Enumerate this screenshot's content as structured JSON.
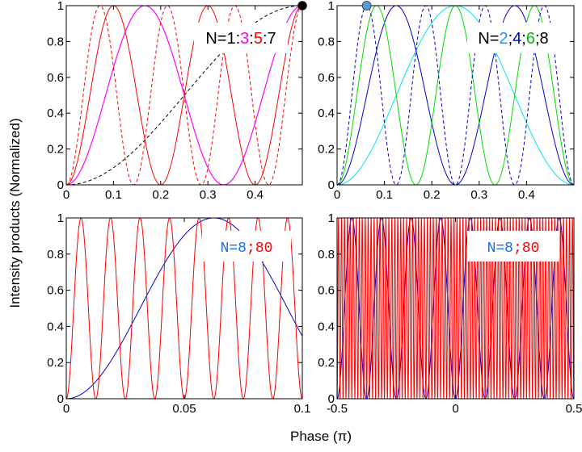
{
  "figure": {
    "xlabel": "Phase (π)",
    "ylabel": "Intensity products (Normalized)"
  },
  "colors": {
    "red": "#ff0000",
    "magenta": "#ff00ff",
    "blue": "#0000cc",
    "green": "#00dd00",
    "cyan": "#00e5e5",
    "light_blue": "#1e90ff",
    "dark_text": "#000000"
  },
  "chart_data": [
    {
      "type": "line",
      "panel": "top-left",
      "xlim": [
        0,
        0.5
      ],
      "ylim": [
        0,
        1
      ],
      "xticks": [
        "0",
        "0.1",
        "0.2",
        "0.3",
        "0.4"
      ],
      "xtick_values": [
        0,
        0.1,
        0.2,
        0.3,
        0.4
      ],
      "yticks": [
        "0",
        "0.2",
        "0.4",
        "0.6",
        "0.8",
        "1"
      ],
      "ytick_values": [
        0,
        0.2,
        0.4,
        0.6,
        0.8,
        1
      ],
      "function": "sin^2(N*pi*x)",
      "series": [
        {
          "N": 1,
          "color": "#000000",
          "dash": "4,3",
          "width": 1
        },
        {
          "N": 3,
          "color": "#ff00ff",
          "dash": "",
          "width": 1.2
        },
        {
          "N": 5,
          "color": "#ff0000",
          "dash": "",
          "width": 1
        },
        {
          "N": 7,
          "color": "#ff0000",
          "dash": "4,3",
          "width": 1
        }
      ],
      "legend": [
        {
          "text": "N=1",
          "color": "#000000"
        },
        {
          "text": ":",
          "color": "#000000"
        },
        {
          "text": "3",
          "color": "#ff00ff"
        },
        {
          "text": ":",
          "color": "#000000"
        },
        {
          "text": "5",
          "color": "#ff0000"
        },
        {
          "text": ":7",
          "color": "#000000"
        }
      ],
      "legend_position": "top-right",
      "marker": {
        "x": 0.5,
        "y": 1,
        "color": "#000000"
      }
    },
    {
      "type": "line",
      "panel": "top-right",
      "xlim": [
        0,
        0.5
      ],
      "ylim": [
        0,
        1
      ],
      "xticks": [
        "0",
        "0.1",
        "0.2",
        "0.3",
        "0.4"
      ],
      "xtick_values": [
        0,
        0.1,
        0.2,
        0.3,
        0.4
      ],
      "yticks": [
        "0",
        "0.2",
        "0.4",
        "0.6",
        "0.8",
        "1"
      ],
      "ytick_values": [
        0,
        0.2,
        0.4,
        0.6,
        0.8,
        1
      ],
      "function": "sin^2(N*pi*x)",
      "series": [
        {
          "N": 2,
          "color": "#00e5e5",
          "dash": "",
          "width": 1
        },
        {
          "N": 4,
          "color": "#0000cc",
          "dash": "",
          "width": 1
        },
        {
          "N": 6,
          "color": "#00dd00",
          "dash": "",
          "width": 1
        },
        {
          "N": 8,
          "color": "#0000cc",
          "dash": "4,3",
          "width": 1
        }
      ],
      "legend": [
        {
          "text": "N=",
          "color": "#000000"
        },
        {
          "text": "2",
          "color": "#1e90ff"
        },
        {
          "text": ";",
          "color": "#000000"
        },
        {
          "text": "4",
          "color": "#0000cc"
        },
        {
          "text": ";",
          "color": "#000000"
        },
        {
          "text": "6",
          "color": "#00bb00"
        },
        {
          "text": ";8",
          "color": "#000000"
        }
      ],
      "legend_position": "top-right",
      "marker": {
        "x": 0.0625,
        "y": 1,
        "color": "#5b9bd5"
      }
    },
    {
      "type": "line",
      "panel": "bottom-left",
      "xlim": [
        0,
        0.1
      ],
      "ylim": [
        0,
        1
      ],
      "xticks": [
        "0",
        "0.05",
        "0.1"
      ],
      "xtick_values": [
        0,
        0.05,
        0.1
      ],
      "yticks": [
        "0",
        "0.2",
        "0.4",
        "0.6",
        "0.8",
        "1"
      ],
      "ytick_values": [
        0,
        0.2,
        0.4,
        0.6,
        0.8,
        1
      ],
      "function": "sin^2(N*pi*x)",
      "series": [
        {
          "N": 8,
          "color": "#0000cc",
          "dash": "",
          "width": 1
        },
        {
          "N": 80,
          "color": "#ff0000",
          "dash": "",
          "width": 1
        }
      ],
      "legend": [
        {
          "text": "N=8",
          "color": "#1e6fe0"
        },
        {
          "text": ";",
          "color": "#ff0000"
        },
        {
          "text": "80",
          "color": "#ff0000"
        }
      ],
      "legend_position": "top-right",
      "legend_font": "mono"
    },
    {
      "type": "line",
      "panel": "bottom-right",
      "xlim": [
        -0.5,
        0.5
      ],
      "ylim": [
        0,
        1
      ],
      "xticks": [
        "-0.5",
        "0",
        "0.5"
      ],
      "xtick_values": [
        -0.5,
        0,
        0.5
      ],
      "yticks": [
        "0",
        "0.2",
        "0.4",
        "0.6",
        "0.8",
        "1"
      ],
      "ytick_values": [
        0,
        0.2,
        0.4,
        0.6,
        0.8,
        1
      ],
      "function": "sin^2(N*pi*x)",
      "series": [
        {
          "N": 8,
          "color": "#0000cc",
          "dash": "",
          "width": 1
        },
        {
          "N": 80,
          "color": "#ff0000",
          "dash": "",
          "width": 1
        }
      ],
      "legend": [
        {
          "text": "N=8",
          "color": "#1e6fe0"
        },
        {
          "text": ";",
          "color": "#ff0000"
        },
        {
          "text": "80",
          "color": "#ff0000"
        }
      ],
      "legend_position": "top-right",
      "legend_font": "mono"
    }
  ]
}
